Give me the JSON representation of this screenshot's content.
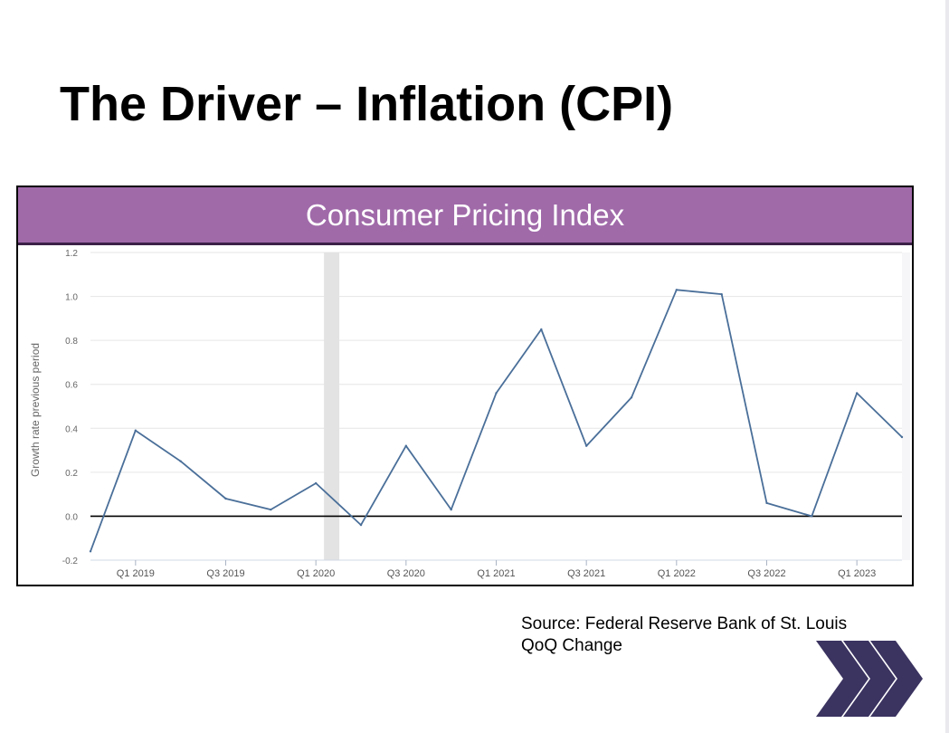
{
  "slide": {
    "title": "The Driver – Inflation (CPI)",
    "source_line1": "Source: Federal Reserve Bank of St. Louis",
    "source_line2": "QoQ Change",
    "logo_icon": "triple-chevron-right-icon",
    "colors": {
      "header_bg": "#a06aa9",
      "header_border": "#3c2147",
      "line": "#4a6f99",
      "recession": "#e3e3e3",
      "logo": "#3b3360"
    }
  },
  "chart_data": {
    "type": "line",
    "title": "Consumer Pricing Index",
    "ylabel": "Growth rate previous period",
    "xlabel": "",
    "ylim": [
      -0.2,
      1.2
    ],
    "yticks": [
      "-0.2",
      "0.0",
      "0.2",
      "0.4",
      "0.6",
      "0.8",
      "1.0",
      "1.2"
    ],
    "grid": true,
    "zero_line": true,
    "x": [
      "Q4 2018",
      "Q1 2019",
      "Q2 2019",
      "Q3 2019",
      "Q4 2019",
      "Q1 2020",
      "Q2 2020",
      "Q3 2020",
      "Q4 2020",
      "Q1 2021",
      "Q2 2021",
      "Q3 2021",
      "Q4 2021",
      "Q1 2022",
      "Q2 2022",
      "Q3 2022",
      "Q4 2022",
      "Q1 2023",
      "Q2 2023"
    ],
    "xtick_labels": [
      "Q1 2019",
      "Q3 2019",
      "Q1 2020",
      "Q3 2020",
      "Q1 2021",
      "Q3 2021",
      "Q1 2022",
      "Q3 2022",
      "Q1 2023"
    ],
    "series": [
      {
        "values": [
          -0.16,
          0.39,
          0.25,
          0.08,
          0.03,
          0.15,
          -0.04,
          0.32,
          0.03,
          0.56,
          0.85,
          0.32,
          0.54,
          1.03,
          1.01,
          0.06,
          0.0,
          0.56,
          0.36
        ]
      }
    ],
    "recession_shading": {
      "start": "Q1 2020",
      "end": "Q2 2020"
    }
  }
}
